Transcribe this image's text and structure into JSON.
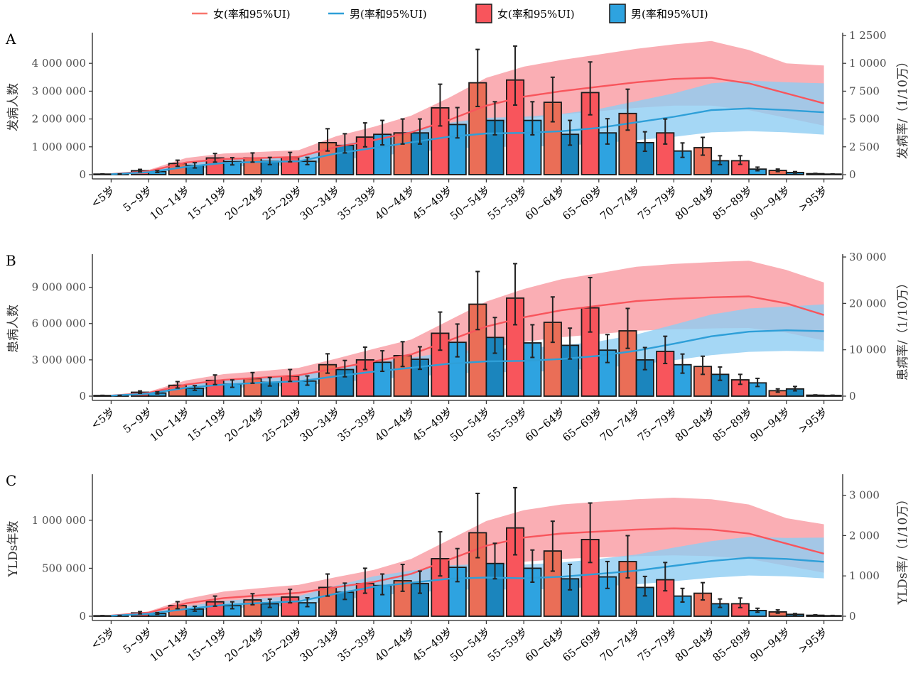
{
  "legend": [
    {
      "label": "女(率和95%UI)",
      "kind": "line",
      "color": "#f8766d"
    },
    {
      "label": "男(率和95%UI)",
      "kind": "line",
      "color": "#2e9fd8"
    },
    {
      "label": "女(率和95%UI)",
      "kind": "box",
      "color": "#f8555c"
    },
    {
      "label": "男(率和95%UI)",
      "kind": "box",
      "color": "#2ea3e0"
    }
  ],
  "colors": {
    "female_bar": "#f8555c",
    "female_bar_alt": "#ea6e57",
    "male_bar": "#2ea3e0",
    "male_bar_alt": "#1b85bd",
    "female_line": "#f8555c",
    "male_line": "#2e9fd8",
    "female_band": "#f9a0a7",
    "male_band": "#8fcdf3"
  },
  "chart_data": [
    {
      "type": "bar",
      "panel": "A",
      "ylabel": "发病人数",
      "y2label": "发病率/（1/10万）",
      "categories": [
        "<5岁",
        "5~9岁",
        "10~14岁",
        "15~19岁",
        "20~24岁",
        "25~29岁",
        "30~34岁",
        "35~39岁",
        "40~44岁",
        "45~49岁",
        "50~54岁",
        "55~59岁",
        "60~64岁",
        "65~69岁",
        "70~74岁",
        "75~79岁",
        "80~84岁",
        "85~89岁",
        "90~94岁",
        ">95岁"
      ],
      "ylim": [
        0,
        5000000
      ],
      "yticks": [
        0,
        1000000,
        2000000,
        3000000,
        4000000
      ],
      "ytick_labels": [
        "0",
        "1 000 000",
        "2 000 000",
        "3 000 000",
        "4 000 000"
      ],
      "y2lim": [
        0,
        12500
      ],
      "y2ticks": [
        0,
        2500,
        5000,
        7500,
        10000,
        12500
      ],
      "y2tick_labels": [
        "0",
        "2 500",
        "5 000",
        "7 500",
        "1 0000",
        "1 2500"
      ],
      "series": [
        {
          "name": "女",
          "values": [
            20000,
            140000,
            400000,
            600000,
            600000,
            620000,
            1150000,
            1350000,
            1500000,
            2400000,
            3300000,
            3400000,
            2600000,
            2950000,
            2200000,
            1500000,
            970000,
            500000,
            150000,
            35000
          ],
          "lower": [
            15000,
            100000,
            300000,
            450000,
            450000,
            460000,
            850000,
            1000000,
            1100000,
            1750000,
            2450000,
            2500000,
            1900000,
            2150000,
            1600000,
            1100000,
            700000,
            370000,
            110000,
            25000
          ],
          "upper": [
            26000,
            190000,
            520000,
            760000,
            780000,
            800000,
            1650000,
            1860000,
            2000000,
            3250000,
            4500000,
            4620000,
            3500000,
            4050000,
            3070000,
            2000000,
            1340000,
            680000,
            200000,
            46000
          ]
        },
        {
          "name": "男",
          "values": [
            18000,
            110000,
            330000,
            470000,
            480000,
            480000,
            1050000,
            1450000,
            1500000,
            1800000,
            1950000,
            1950000,
            1450000,
            1500000,
            1150000,
            850000,
            500000,
            200000,
            80000,
            20000
          ],
          "lower": [
            13000,
            80000,
            240000,
            350000,
            360000,
            360000,
            780000,
            1070000,
            1100000,
            1320000,
            1430000,
            1430000,
            1060000,
            1100000,
            840000,
            620000,
            360000,
            140000,
            58000,
            14000
          ],
          "upper": [
            24000,
            145000,
            430000,
            610000,
            620000,
            620000,
            1470000,
            1950000,
            2000000,
            2410000,
            2620000,
            2620000,
            1950000,
            2010000,
            1540000,
            1140000,
            680000,
            270000,
            110000,
            27000
          ]
        }
      ],
      "rate_series": [
        {
          "name": "女",
          "values": [
            50,
            300,
            1100,
            1400,
            1500,
            1600,
            2500,
            3100,
            3800,
            4900,
            6200,
            7000,
            7500,
            7900,
            8300,
            8600,
            8700,
            8200,
            7300,
            6400
          ],
          "lower": [
            30,
            200,
            750,
            1000,
            1050,
            1100,
            1700,
            2100,
            2600,
            3300,
            4300,
            5000,
            5400,
            5700,
            6000,
            6200,
            6200,
            5800,
            5100,
            4400
          ],
          "upper": [
            75,
            420,
            1500,
            1900,
            2050,
            2200,
            3450,
            4300,
            5300,
            6900,
            8700,
            9700,
            10300,
            10800,
            11300,
            11700,
            12000,
            11200,
            10000,
            9800
          ]
        },
        {
          "name": "男",
          "values": [
            40,
            220,
            700,
            1050,
            1150,
            1200,
            1900,
            2400,
            2900,
            3400,
            3700,
            3750,
            3900,
            4200,
            4700,
            5200,
            5800,
            5950,
            5800,
            5600
          ],
          "lower": [
            25,
            150,
            480,
            720,
            790,
            820,
            1300,
            1650,
            2000,
            2300,
            2500,
            2500,
            2600,
            2800,
            3100,
            3400,
            3800,
            3900,
            3800,
            3600
          ],
          "upper": [
            58,
            300,
            960,
            1430,
            1560,
            1630,
            2600,
            3250,
            3950,
            4650,
            5100,
            5200,
            5450,
            5900,
            6600,
            7300,
            8200,
            8450,
            8300,
            8200
          ]
        }
      ]
    },
    {
      "type": "bar",
      "panel": "B",
      "ylabel": "患病人数",
      "y2label": "患病率/（1/10万）",
      "categories": [
        "<5岁",
        "5~9岁",
        "10~14岁",
        "15~19岁",
        "20~24岁",
        "25~29岁",
        "30~34岁",
        "35~39岁",
        "40~44岁",
        "45~49岁",
        "50~54岁",
        "55~59岁",
        "60~64岁",
        "65~69岁",
        "70~74岁",
        "75~79岁",
        "80~84岁",
        "85~89岁",
        "90~94岁",
        ">95岁"
      ],
      "ylim": [
        0,
        11500000
      ],
      "yticks": [
        0,
        3000000,
        6000000,
        9000000
      ],
      "ytick_labels": [
        "0",
        "3 000 000",
        "6 000 000",
        "9 000 000"
      ],
      "y2lim": [
        0,
        30000
      ],
      "y2ticks": [
        0,
        10000,
        20000,
        30000
      ],
      "y2tick_labels": [
        "0",
        "10 000",
        "20 000",
        "30 000"
      ],
      "series": [
        {
          "name": "女",
          "values": [
            50000,
            320000,
            900000,
            1300000,
            1450000,
            1650000,
            2600000,
            3000000,
            3350000,
            5200000,
            7600000,
            8100000,
            6100000,
            7300000,
            5400000,
            3700000,
            2450000,
            1350000,
            450000,
            80000
          ],
          "lower": [
            37000,
            240000,
            670000,
            960000,
            1070000,
            1220000,
            1900000,
            2200000,
            2450000,
            3800000,
            5500000,
            5900000,
            4450000,
            5300000,
            3950000,
            2700000,
            1800000,
            980000,
            330000,
            60000
          ],
          "upper": [
            68000,
            430000,
            1200000,
            1750000,
            1950000,
            2200000,
            3500000,
            4050000,
            4500000,
            6950000,
            10300000,
            10950000,
            8200000,
            9800000,
            7250000,
            4950000,
            3300000,
            1800000,
            600000,
            105000
          ]
        },
        {
          "name": "男",
          "values": [
            45000,
            260000,
            650000,
            1000000,
            1150000,
            1250000,
            2200000,
            2800000,
            3050000,
            4450000,
            4850000,
            4400000,
            4200000,
            3800000,
            3000000,
            2600000,
            1800000,
            1100000,
            600000,
            60000
          ],
          "lower": [
            33000,
            190000,
            480000,
            730000,
            840000,
            910000,
            1600000,
            2050000,
            2220000,
            3250000,
            3550000,
            3200000,
            3070000,
            2780000,
            2190000,
            1900000,
            1310000,
            800000,
            440000,
            44000
          ],
          "upper": [
            60000,
            350000,
            870000,
            1340000,
            1540000,
            1670000,
            2950000,
            3750000,
            4080000,
            5960000,
            6500000,
            5900000,
            5620000,
            5090000,
            4020000,
            3480000,
            2410000,
            1470000,
            800000,
            80000
          ]
        }
      ],
      "rate_series": [
        {
          "name": "女",
          "values": [
            120,
            700,
            2500,
            3500,
            4000,
            4500,
            6000,
            7500,
            9000,
            12000,
            15000,
            17000,
            18500,
            19500,
            20500,
            21000,
            21300,
            21500,
            20000,
            17500
          ],
          "lower": [
            80,
            480,
            1700,
            2400,
            2750,
            3100,
            4100,
            5200,
            6200,
            8300,
            10300,
            11700,
            12700,
            13400,
            14100,
            14400,
            14600,
            14700,
            13700,
            12000
          ],
          "upper": [
            170,
            950,
            3400,
            4750,
            5400,
            6100,
            8100,
            10200,
            12200,
            16300,
            20400,
            23100,
            25200,
            26500,
            27900,
            28500,
            28900,
            29200,
            27200,
            24500
          ]
        },
        {
          "name": "男",
          "values": [
            100,
            550,
            1800,
            2500,
            2900,
            3200,
            4300,
            5300,
            6100,
            7000,
            7500,
            7600,
            8000,
            8700,
            9800,
            11300,
            12900,
            13900,
            14200,
            14000
          ],
          "lower": [
            70,
            380,
            1240,
            1720,
            2000,
            2200,
            2950,
            3650,
            4200,
            4800,
            5150,
            5200,
            5500,
            6000,
            6750,
            7750,
            8850,
            9550,
            9750,
            9600
          ],
          "upper": [
            135,
            750,
            2450,
            3400,
            3950,
            4350,
            5850,
            7200,
            8300,
            9500,
            10200,
            10350,
            10900,
            11800,
            13300,
            15400,
            17600,
            18900,
            19300,
            19800
          ]
        }
      ]
    },
    {
      "type": "bar",
      "panel": "C",
      "ylabel": "YLDs年数",
      "y2label": "YLDs率/（1/10万）",
      "categories": [
        "<5岁",
        "5~9岁",
        "10~14岁",
        "15~19岁",
        "20~24岁",
        "25~29岁",
        "30~34岁",
        "35~39岁",
        "40~44岁",
        "45~49岁",
        "50~54岁",
        "55~59岁",
        "60~64岁",
        "65~69岁",
        "70~74岁",
        "75~79岁",
        "80~84岁",
        "85~89岁",
        "90~94岁",
        ">95岁"
      ],
      "ylim": [
        0,
        1450000
      ],
      "yticks": [
        0,
        500000,
        1000000
      ],
      "ytick_labels": [
        "0",
        "500 000",
        "1 000 000"
      ],
      "y2lim": [
        0,
        3450
      ],
      "y2ticks": [
        0,
        1000,
        2000,
        3000
      ],
      "y2tick_labels": [
        "0",
        "1 000",
        "2 000",
        "3 000"
      ],
      "series": [
        {
          "name": "女",
          "values": [
            5000,
            35000,
            110000,
            150000,
            170000,
            200000,
            300000,
            340000,
            370000,
            600000,
            870000,
            920000,
            680000,
            800000,
            570000,
            380000,
            240000,
            130000,
            45000,
            10000
          ],
          "lower": [
            3600,
            25000,
            78000,
            105000,
            120000,
            140000,
            210000,
            240000,
            260000,
            420000,
            610000,
            640000,
            470000,
            560000,
            400000,
            265000,
            170000,
            90000,
            32000,
            7000
          ],
          "upper": [
            6800,
            48000,
            152000,
            210000,
            235000,
            280000,
            440000,
            500000,
            540000,
            880000,
            1280000,
            1340000,
            990000,
            1180000,
            840000,
            560000,
            350000,
            190000,
            66000,
            14500
          ]
        },
        {
          "name": "男",
          "values": [
            4500,
            28000,
            75000,
            110000,
            130000,
            140000,
            250000,
            320000,
            340000,
            510000,
            550000,
            500000,
            390000,
            410000,
            300000,
            210000,
            130000,
            60000,
            20000,
            6000
          ],
          "lower": [
            3200,
            20000,
            53000,
            78000,
            92000,
            100000,
            175000,
            225000,
            240000,
            360000,
            390000,
            355000,
            275000,
            290000,
            212000,
            148000,
            92000,
            42000,
            14000,
            4200
          ],
          "upper": [
            6200,
            38000,
            103000,
            150000,
            178000,
            192000,
            345000,
            440000,
            470000,
            705000,
            760000,
            690000,
            540000,
            570000,
            415000,
            290000,
            180000,
            83000,
            28000,
            8300
          ]
        }
      ],
      "rate_series": [
        {
          "name": "女",
          "values": [
            15,
            90,
            320,
            450,
            520,
            580,
            720,
            850,
            1050,
            1400,
            1750,
            1950,
            2050,
            2100,
            2150,
            2180,
            2150,
            2050,
            1800,
            1550
          ],
          "lower": [
            10,
            62,
            220,
            310,
            360,
            400,
            500,
            590,
            730,
            970,
            1210,
            1350,
            1420,
            1460,
            1490,
            1510,
            1490,
            1420,
            1250,
            1080
          ],
          "upper": [
            20,
            120,
            430,
            610,
            700,
            780,
            970,
            1150,
            1420,
            1890,
            2360,
            2630,
            2770,
            2840,
            2900,
            2940,
            2900,
            2770,
            2430,
            2280
          ]
        },
        {
          "name": "男",
          "values": [
            12,
            60,
            180,
            280,
            330,
            370,
            560,
            730,
            830,
            930,
            960,
            940,
            980,
            1050,
            1130,
            1250,
            1370,
            1450,
            1420,
            1350
          ],
          "lower": [
            8,
            42,
            125,
            195,
            230,
            258,
            390,
            510,
            580,
            650,
            670,
            655,
            685,
            735,
            790,
            870,
            955,
            1010,
            990,
            940
          ],
          "upper": [
            16,
            80,
            245,
            380,
            450,
            500,
            760,
            990,
            1130,
            1260,
            1300,
            1280,
            1330,
            1420,
            1530,
            1700,
            1860,
            1970,
            1940,
            1950
          ]
        }
      ]
    }
  ]
}
